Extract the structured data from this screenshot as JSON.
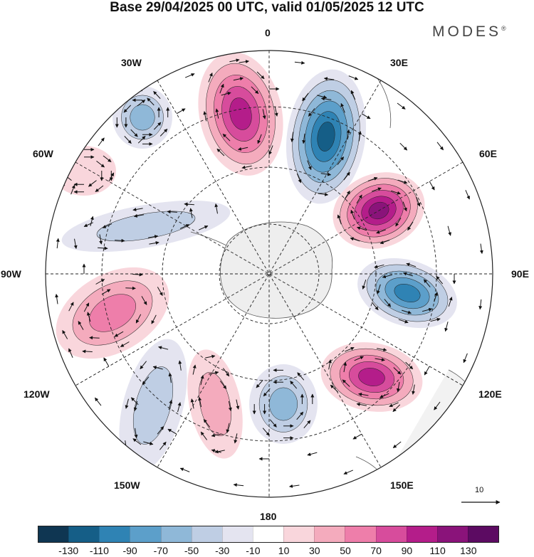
{
  "title": "Base 29/04/2025 00 UTC, valid 01/05/2025 12 UTC",
  "brand": "MODES",
  "brand_mark": "®",
  "graticule_labels": {
    "lon_0": "0",
    "lon_30e": "30E",
    "lon_60e": "60E",
    "lon_90e": "90E",
    "lon_120e": "120E",
    "lon_150e": "150E",
    "lon_180": "180",
    "lon_150w": "150W",
    "lon_120w": "120W",
    "lon_90w": "90W",
    "lon_60w": "60W",
    "lon_30w": "30W"
  },
  "vector_scale": {
    "label": "10"
  },
  "colorbar": {
    "colors": [
      "#0f3652",
      "#155e87",
      "#2f83b4",
      "#5c9fca",
      "#8fb8d8",
      "#bfcee4",
      "#e4e4f0",
      "#ffffff",
      "#f9d6dc",
      "#f4abbd",
      "#ee7eaa",
      "#d74c9c",
      "#b41d8a",
      "#8a137a",
      "#5c0b62"
    ],
    "labels": [
      "-130",
      "-110",
      "-90",
      "-70",
      "-50",
      "-30",
      "-10",
      "10",
      "30",
      "50",
      "70",
      "90",
      "110",
      "130"
    ]
  },
  "map_data": {
    "projection": "south-polar-stereographic",
    "field": "anomaly",
    "anomaly_cells": [
      {
        "sign": "positive",
        "level": 110,
        "center": "between 30W and 0",
        "shape": "elongated"
      },
      {
        "sign": "negative",
        "level": -130,
        "center": "between 0 and 30E",
        "shape": "elongated"
      },
      {
        "sign": "positive",
        "level": 130,
        "center": "between 30E and 60E"
      },
      {
        "sign": "negative",
        "level": -110,
        "center": "near 90E"
      },
      {
        "sign": "positive",
        "level": 110,
        "center": "between 120E and 150E"
      },
      {
        "sign": "negative",
        "level": -70,
        "center": "near 180"
      },
      {
        "sign": "positive",
        "level": 50,
        "center": "between 150W and 180"
      },
      {
        "sign": "negative",
        "level": -50,
        "center": "between 120W and 150W"
      },
      {
        "sign": "positive",
        "level": 70,
        "center": "between 90W and 120W"
      },
      {
        "sign": "negative",
        "level": -50,
        "center": "between 60W and 90W"
      },
      {
        "sign": "positive",
        "level": 30,
        "center": "near 60W"
      },
      {
        "sign": "negative",
        "level": -70,
        "center": "near 30W"
      }
    ]
  }
}
